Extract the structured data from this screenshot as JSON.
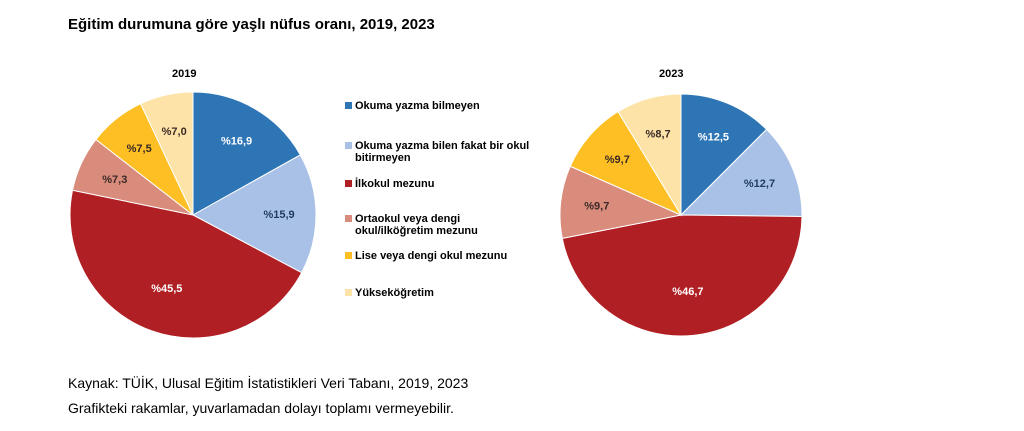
{
  "title": "Eğitim durumuna göre yaşlı nüfus oranı, 2019, 2023",
  "chart_data": [
    {
      "type": "pie",
      "title": "2019",
      "categories": [
        "Okuma yazma bilmeyen",
        "Okuma yazma bilen fakat bir okul bitirmeyen",
        "İlkokul mezunu",
        "Ortaokul veya dengi okul/ilköğretim mezunu",
        "Lise veya dengi okul mezunu",
        "Yükseköğretim"
      ],
      "values": [
        16.9,
        15.9,
        45.5,
        7.3,
        7.5,
        7.0
      ],
      "labels": [
        "%16,9",
        "%15,9",
        "%45,5",
        "%7,3",
        "%7,5",
        "%7,0"
      ]
    },
    {
      "type": "pie",
      "title": "2023",
      "categories": [
        "Okuma yazma bilmeyen",
        "Okuma yazma bilen fakat bir okul bitirmeyen",
        "İlkokul mezunu",
        "Ortaokul veya dengi okul/ilköğretim mezunu",
        "Lise veya dengi okul mezunu",
        "Yükseköğretim"
      ],
      "values": [
        12.5,
        12.7,
        46.7,
        9.7,
        9.7,
        8.7
      ],
      "labels": [
        "%12,5",
        "%12,7",
        "%46,7",
        "%9,7",
        "%9,7",
        "%8,7"
      ]
    }
  ],
  "legend": [
    {
      "label": "Okuma yazma bilmeyen",
      "color": "#2e75b6"
    },
    {
      "label": "Okuma yazma bilen fakat bir okul bitirmeyen",
      "color": "#a9c1e6"
    },
    {
      "label": "İlkokul mezunu",
      "color": "#b01f24"
    },
    {
      "label": "Ortaokul veya dengi okul/ilköğretim mezunu",
      "color": "#d98b7c"
    },
    {
      "label": "Lise veya dengi okul mezunu",
      "color": "#fdbf23"
    },
    {
      "label": "Yükseköğretim",
      "color": "#fde3a7"
    }
  ],
  "label_colors": [
    "#ffffff",
    "#1f3a5f",
    "#ffffff",
    "#3a2a26",
    "#3a2a26",
    "#3a2a26"
  ],
  "source": "Kaynak: TÜİK, Ulusal Eğitim İstatistikleri Veri Tabanı, 2019, 2023",
  "note": "Grafikteki rakamlar, yuvarlamadan dolayı toplamı vermeyebilir."
}
